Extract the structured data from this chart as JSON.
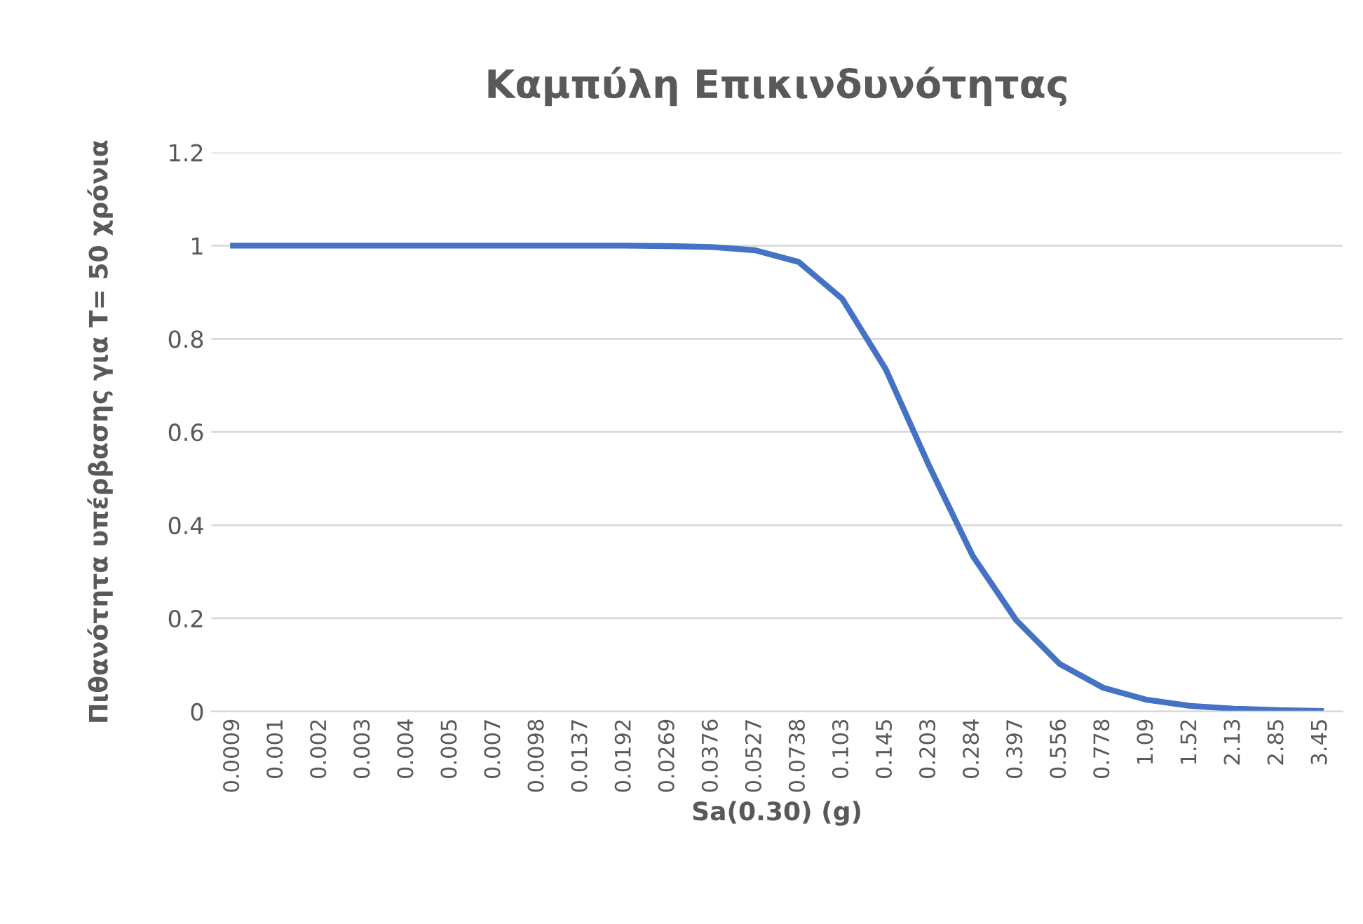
{
  "chart_data": {
    "type": "line",
    "title": "Καμπύλη Επικινδυνότητας",
    "xlabel": "Sa(0.30) (g)",
    "ylabel": "Πιθανότητα υπέρβασης για T= 50 χρόνια",
    "categories": [
      "0.0009",
      "0.001",
      "0.002",
      "0.003",
      "0.004",
      "0.005",
      "0.007",
      "0.0098",
      "0.0137",
      "0.0192",
      "0.0269",
      "0.0376",
      "0.0527",
      "0.0738",
      "0.103",
      "0.145",
      "0.203",
      "0.284",
      "0.397",
      "0.556",
      "0.778",
      "1.09",
      "1.52",
      "2.13",
      "2.85",
      "3.45"
    ],
    "series": [
      {
        "color": "#4472c4",
        "values": [
          1,
          1,
          1,
          1,
          1,
          1,
          1,
          1,
          1,
          1,
          0.999,
          0.997,
          0.99,
          0.965,
          0.886,
          0.735,
          0.527,
          0.334,
          0.196,
          0.102,
          0.051,
          0.025,
          0.012,
          0.006,
          0.003,
          0.001
        ]
      }
    ],
    "ylim": [
      0,
      1.2
    ],
    "yticks": [
      0,
      0.2,
      0.4,
      0.6,
      0.8,
      1,
      1.2
    ],
    "grid": "y",
    "legend": false,
    "marker": "none",
    "line_style": "solid"
  }
}
